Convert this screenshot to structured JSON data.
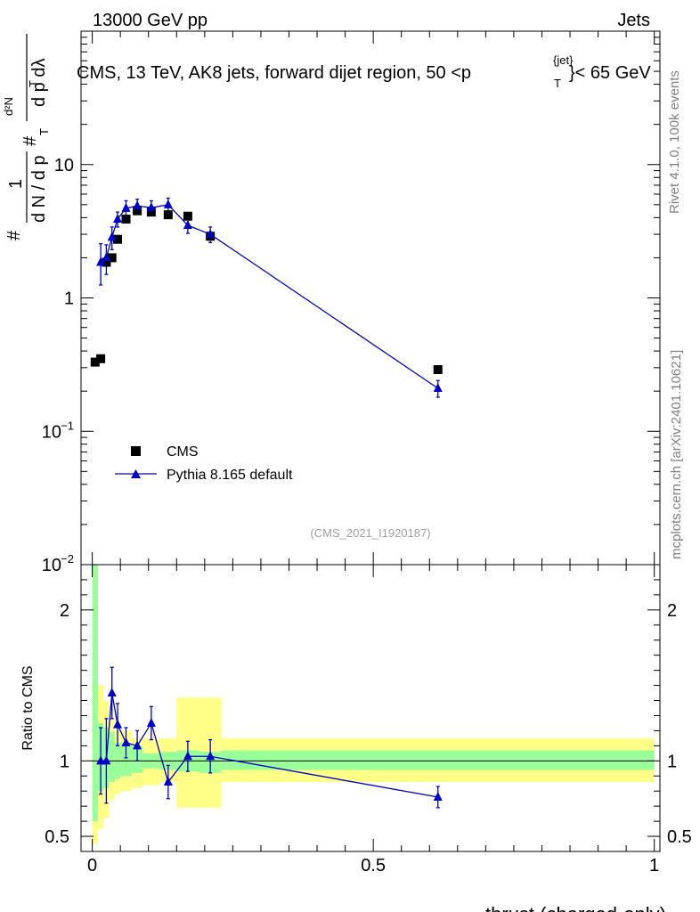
{
  "header": {
    "energy": "13000 GeV pp",
    "category": "Jets"
  },
  "side": {
    "rivet": "Rivet 4.1.0,  100k events",
    "mcplots": "mcplots.cern.ch [arXiv:2401.10621]"
  },
  "colors": {
    "mc": "#0000cc",
    "data": "#000000",
    "band_inner": "#99ff99",
    "band_outer": "#ffff88"
  },
  "chart_data": {
    "type": "scatter",
    "title": "CMS, 13 TeV, AK8 jets, forward dijet region, 50 <p",
    "title_sup": "{jet}",
    "title_sub": "T",
    "title_end": "}< 65 GeV",
    "analysis_id": "(CMS_2021_I1920187)",
    "xlabel": "thrust (charged-only)",
    "ylabel_main": "1/N dN/dλ",
    "ylabel_ratio": "Ratio to CMS",
    "xlim": [
      -0.02,
      1.01
    ],
    "ylim_main": [
      0.01,
      100
    ],
    "ylim_ratio": [
      0.4,
      2.3
    ],
    "x_ticks": [
      "0",
      "0.5",
      "1"
    ],
    "x_tick_values": [
      0,
      0.5,
      1
    ],
    "y_ticks_main": [
      {
        "value": 0.01,
        "mant": "10",
        "exp": "−2"
      },
      {
        "value": 0.1,
        "mant": "10",
        "exp": "−1"
      },
      {
        "value": 1,
        "mant": "1",
        "exp": ""
      },
      {
        "value": 10,
        "mant": "10",
        "exp": ""
      }
    ],
    "y_ticks_ratio": [
      "0.5",
      "1",
      "2"
    ],
    "y_tick_values_ratio": [
      0.5,
      1,
      2
    ],
    "legend": {
      "position": "lower-left",
      "entries": [
        "CMS",
        "Pythia 8.165 default"
      ]
    },
    "bins": [
      [
        0,
        0.01
      ],
      [
        0.01,
        0.02
      ],
      [
        0.02,
        0.03
      ],
      [
        0.03,
        0.04
      ],
      [
        0.04,
        0.05
      ],
      [
        0.05,
        0.07
      ],
      [
        0.07,
        0.09
      ],
      [
        0.09,
        0.12
      ],
      [
        0.12,
        0.15
      ],
      [
        0.15,
        0.19
      ],
      [
        0.19,
        0.23
      ],
      [
        0.23,
        1.0
      ]
    ],
    "series": [
      {
        "name": "CMS",
        "marker": "square",
        "x": [
          0.005,
          0.015,
          0.025,
          0.035,
          0.045,
          0.06,
          0.08,
          0.105,
          0.135,
          0.17,
          0.21,
          0.615
        ],
        "values": [
          0.33,
          0.35,
          1.85,
          2.0,
          2.75,
          3.9,
          4.5,
          4.4,
          4.2,
          4.1,
          2.9,
          0.29
        ]
      },
      {
        "name": "Pythia 8.165 default",
        "marker": "triangle",
        "x": [
          0.015,
          0.025,
          0.035,
          0.045,
          0.06,
          0.08,
          0.105,
          0.135,
          0.17,
          0.21,
          0.615
        ],
        "values": [
          1.85,
          2.0,
          2.85,
          3.9,
          4.7,
          4.9,
          4.75,
          5.0,
          3.5,
          3.0,
          0.21
        ],
        "err_low": [
          0.6,
          0.5,
          0.55,
          0.5,
          0.65,
          0.6,
          0.6,
          0.6,
          0.45,
          0.4,
          0.03
        ],
        "err_high": [
          0.7,
          0.5,
          0.55,
          0.5,
          0.65,
          0.6,
          0.6,
          0.6,
          0.45,
          0.4,
          0.03
        ]
      }
    ],
    "ratio": {
      "x": [
        0.015,
        0.025,
        0.035,
        0.045,
        0.06,
        0.08,
        0.105,
        0.135,
        0.17,
        0.21,
        0.615
      ],
      "values": [
        1.0,
        1.0,
        1.45,
        1.24,
        1.12,
        1.1,
        1.25,
        0.86,
        1.03,
        1.03,
        0.76
      ],
      "err": [
        0.22,
        0.28,
        0.17,
        0.14,
        0.1,
        0.1,
        0.11,
        0.11,
        0.1,
        0.11,
        0.07
      ],
      "band_inner": [
        [
          0.6,
          2.3
        ],
        [
          0.8,
          1.25
        ],
        [
          0.82,
          1.22
        ],
        [
          0.86,
          1.19
        ],
        [
          0.88,
          1.12
        ],
        [
          0.9,
          1.12
        ],
        [
          0.92,
          1.1
        ],
        [
          0.95,
          1.05
        ],
        [
          0.94,
          1.06
        ],
        [
          0.93,
          1.07
        ],
        [
          0.92,
          1.06
        ],
        [
          0.94,
          1.07
        ]
      ],
      "band_outer": [
        [
          0.45,
          2.3
        ],
        [
          0.55,
          1.5
        ],
        [
          0.62,
          1.4
        ],
        [
          0.74,
          1.28
        ],
        [
          0.78,
          1.2
        ],
        [
          0.8,
          1.2
        ],
        [
          0.82,
          1.15
        ],
        [
          0.84,
          1.15
        ],
        [
          0.86,
          1.15
        ],
        [
          0.69,
          1.42
        ],
        [
          0.69,
          1.42
        ],
        [
          0.86,
          1.15
        ]
      ]
    }
  }
}
